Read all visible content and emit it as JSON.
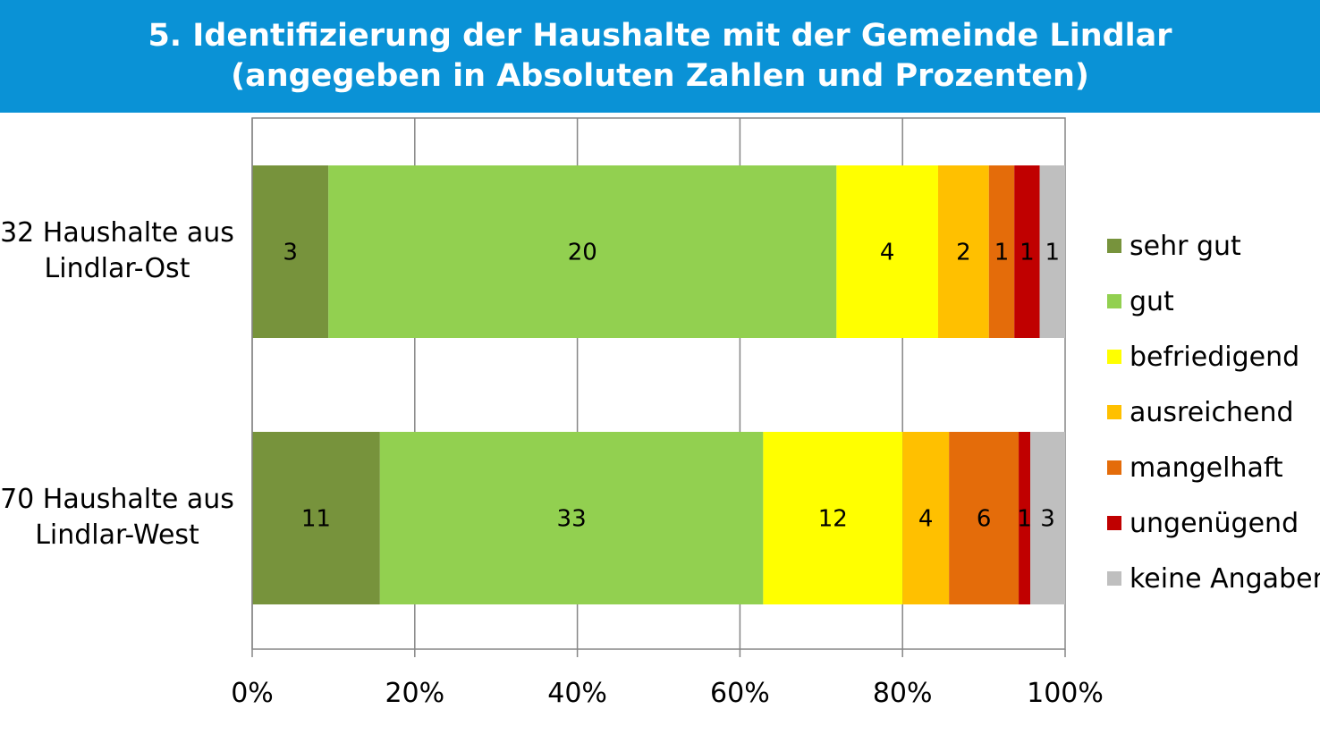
{
  "title": {
    "line1": "5. Identifizierung der Haushalte mit der Gemeinde Lindlar",
    "line2": "(angegeben in Absoluten Zahlen und Prozenten)"
  },
  "chart_data": {
    "type": "bar",
    "orientation": "horizontal",
    "stacked": "percent",
    "title": "5. Identifizierung der Haushalte mit der Gemeinde Lindlar (angegeben in Absoluten Zahlen und Prozenten)",
    "categories": [
      {
        "line1": "32 Haushalte aus",
        "line2": "Lindlar-Ost"
      },
      {
        "line1": "70 Haushalte aus",
        "line2": "Lindlar-West"
      }
    ],
    "series": [
      {
        "name": "sehr gut",
        "color": "#77933c",
        "values": [
          3,
          11
        ]
      },
      {
        "name": "gut",
        "color": "#92d050",
        "values": [
          20,
          33
        ]
      },
      {
        "name": "befriedigend",
        "color": "#ffff00",
        "values": [
          4,
          12
        ]
      },
      {
        "name": "ausreichend",
        "color": "#ffc000",
        "values": [
          2,
          4
        ]
      },
      {
        "name": "mangelhaft",
        "color": "#e46c0a",
        "values": [
          1,
          6
        ]
      },
      {
        "name": "ungenügend",
        "color": "#c00000",
        "values": [
          1,
          1
        ]
      },
      {
        "name": "keine Angaben",
        "color": "#bfbfbf",
        "values": [
          1,
          3
        ]
      }
    ],
    "xaxis": {
      "ticks": [
        "0%",
        "20%",
        "40%",
        "60%",
        "80%",
        "100%"
      ],
      "range": [
        0,
        100
      ]
    },
    "grid": true,
    "legend": "right"
  }
}
